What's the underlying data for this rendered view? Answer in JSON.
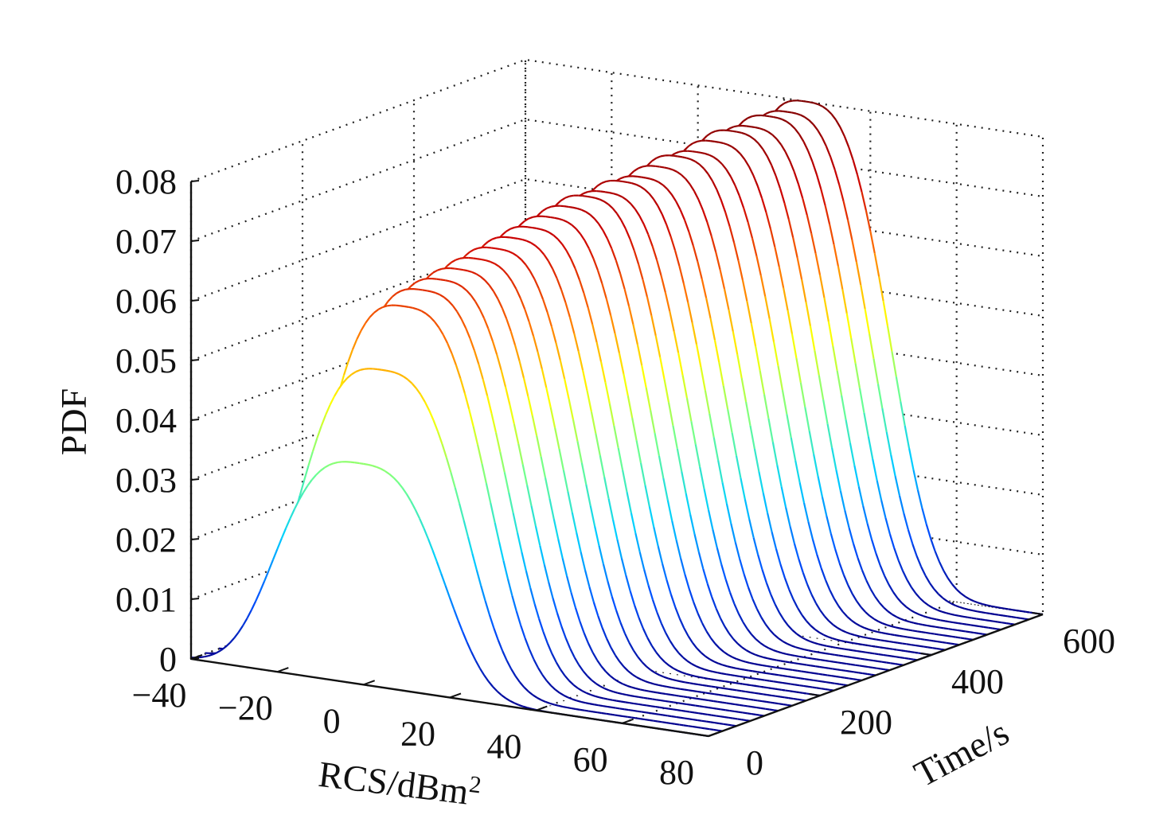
{
  "chart_data": {
    "type": "line",
    "subtype": "3d-waterfall-mesh",
    "title": "",
    "xlabel": "RCS/dBm",
    "xlabel_superscript": "2",
    "ylabel": "Time/s",
    "zlabel": "PDF",
    "xlim": [
      -40,
      80
    ],
    "ylim": [
      0,
      600
    ],
    "zlim": [
      0,
      0.08
    ],
    "x_ticks": [
      "−40",
      "−20",
      "0",
      "20",
      "40",
      "60",
      "80"
    ],
    "y_ticks": [
      "0",
      "200",
      "400",
      "600"
    ],
    "z_ticks": [
      "0",
      "0.01",
      "0.02",
      "0.03",
      "0.04",
      "0.05",
      "0.06",
      "0.07",
      "0.08"
    ],
    "grid": true,
    "colormap": "jet",
    "colormap_stops": [
      "#00008f",
      "#0050ff",
      "#00d0ff",
      "#6fff8f",
      "#ffff00",
      "#ff7000",
      "#cc0000",
      "#800000"
    ],
    "series_note_values": {
      "time_slices_s": [
        0,
        25,
        50,
        75,
        100,
        125,
        150,
        175,
        200,
        225,
        250,
        275,
        300,
        325,
        350,
        375,
        400,
        425,
        450,
        475,
        500,
        525,
        550,
        575,
        600
      ],
      "peak_rcs_dbm2": [
        -1,
        1,
        3,
        4,
        5,
        6,
        7,
        8,
        9,
        10,
        11,
        12,
        13,
        14,
        15,
        16,
        17,
        18,
        19,
        20,
        21,
        22,
        23,
        24,
        25
      ],
      "peak_pdf": [
        0.037,
        0.052,
        0.062,
        0.064,
        0.065,
        0.066,
        0.067,
        0.068,
        0.069,
        0.07,
        0.071,
        0.072,
        0.073,
        0.073,
        0.074,
        0.074,
        0.075,
        0.076,
        0.076,
        0.077,
        0.078,
        0.078,
        0.079,
        0.079,
        0.08
      ],
      "ridge_width_dbm2": 18
    }
  }
}
